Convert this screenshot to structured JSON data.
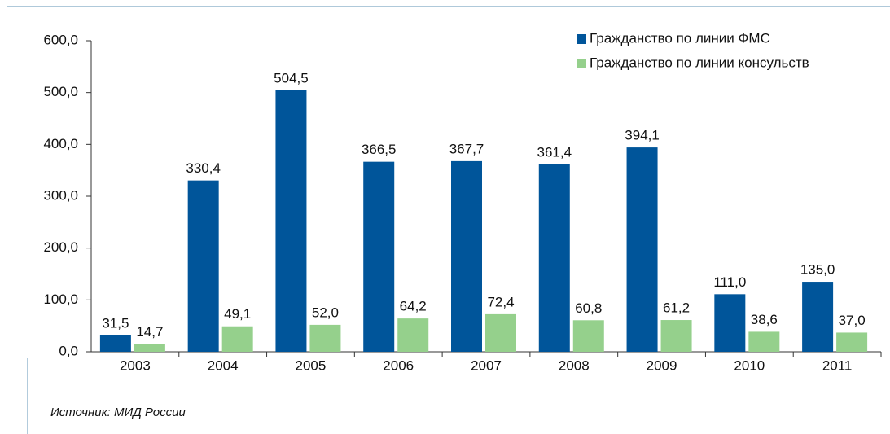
{
  "chart_data": {
    "type": "bar",
    "categories": [
      "2003",
      "2004",
      "2005",
      "2006",
      "2007",
      "2008",
      "2009",
      "2010",
      "2011"
    ],
    "series": [
      {
        "name": "Гражданство по линии ФМС",
        "color": "#00559a",
        "values": [
          31.5,
          330.4,
          504.5,
          366.5,
          367.7,
          361.4,
          394.1,
          111.0,
          135.0
        ],
        "value_labels": [
          "31,5",
          "330,4",
          "504,5",
          "366,5",
          "367,7",
          "361,4",
          "394,1",
          "111,0",
          "135,0"
        ]
      },
      {
        "name": "Гражданство по линии консульств",
        "color": "#95d08c",
        "values": [
          14.7,
          49.1,
          52.0,
          64.2,
          72.4,
          60.8,
          61.2,
          38.6,
          37.0
        ],
        "value_labels": [
          "14,7",
          "49,1",
          "52,0",
          "64,2",
          "72,4",
          "60,8",
          "61,2",
          "38,6",
          "37,0"
        ]
      }
    ],
    "ylim": [
      0,
      600
    ],
    "yticks": [
      {
        "value": 0,
        "label": "0,0"
      },
      {
        "value": 100,
        "label": "100,0"
      },
      {
        "value": 200,
        "label": "200,0"
      },
      {
        "value": 300,
        "label": "300,0"
      },
      {
        "value": 400,
        "label": "400,0"
      },
      {
        "value": 500,
        "label": "500,0"
      },
      {
        "value": 600,
        "label": "600,0"
      }
    ],
    "legend": "top-right",
    "source": "Источник: МИД России"
  }
}
